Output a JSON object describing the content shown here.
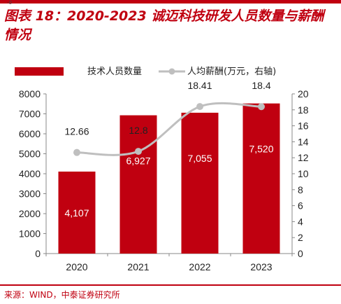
{
  "header": {
    "top_mark": "-0"
  },
  "title": "图表 18：2020-2023 诚迈科技研发人员数量与薪酬情况",
  "source": "来源：WIND，中泰证券研究所",
  "colors": {
    "bar": "#c00010",
    "line": "#bfbfbf",
    "accent": "#c00010"
  },
  "chart_data": {
    "type": "bar",
    "categories": [
      "2020",
      "2021",
      "2022",
      "2023"
    ],
    "legend_position": "top",
    "grid": false,
    "series": [
      {
        "name": "技术人员数量",
        "type": "bar",
        "axis": "left",
        "values": [
          4107,
          6927,
          7055,
          7520
        ],
        "labels": [
          "4,107",
          "6,927",
          "7,055",
          "7,520"
        ]
      },
      {
        "name": "人均薪酬(万元，右轴)",
        "type": "line",
        "axis": "right",
        "values": [
          12.66,
          12.8,
          18.41,
          18.4
        ],
        "labels": [
          "12.66",
          "12.8",
          "18.41",
          "18.4"
        ]
      }
    ],
    "y_left": {
      "lim": [
        0,
        8000
      ],
      "ticks": [
        "0",
        "1000",
        "2000",
        "3000",
        "4000",
        "5000",
        "6000",
        "7000",
        "8000"
      ]
    },
    "y_right": {
      "lim": [
        0,
        20
      ],
      "ticks": [
        "0",
        "2",
        "4",
        "6",
        "8",
        "10",
        "12",
        "14",
        "16",
        "18",
        "20"
      ]
    }
  }
}
